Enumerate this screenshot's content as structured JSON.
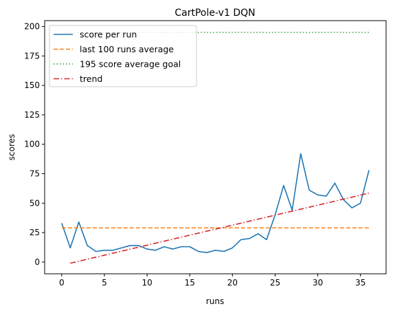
{
  "chart_data": {
    "type": "line",
    "title": "CartPole-v1 DQN",
    "xlabel": "runs",
    "ylabel": "scores",
    "xlim": [
      -2,
      38
    ],
    "ylim": [
      -10,
      205
    ],
    "xticks": [
      0,
      5,
      10,
      15,
      20,
      25,
      30,
      35
    ],
    "yticks": [
      0,
      25,
      50,
      75,
      100,
      125,
      150,
      175,
      200
    ],
    "grid": false,
    "legend_position": "upper-left",
    "series": [
      {
        "name": "score per run",
        "style": "solid",
        "color": "#1f77b4",
        "x": [
          0,
          1,
          2,
          3,
          4,
          5,
          6,
          7,
          8,
          9,
          10,
          11,
          12,
          13,
          14,
          15,
          16,
          17,
          18,
          19,
          20,
          21,
          22,
          23,
          24,
          25,
          26,
          27,
          28,
          29,
          30,
          31,
          32,
          33,
          34,
          35,
          36
        ],
        "y": [
          33,
          12,
          34,
          14,
          9,
          10,
          10,
          12,
          14,
          14,
          11,
          10,
          13,
          11,
          13,
          13,
          9,
          8,
          10,
          9,
          12,
          19,
          20,
          24,
          19,
          40,
          65,
          44,
          92,
          61,
          57,
          56,
          67,
          53,
          46,
          50,
          78
        ]
      },
      {
        "name": "last 100 runs average",
        "style": "dashed",
        "color": "#ff7f0e",
        "x": [
          0,
          36
        ],
        "y": [
          29,
          29
        ]
      },
      {
        "name": "195 score average goal",
        "style": "dotted",
        "color": "#2ca02c",
        "x": [
          0,
          36
        ],
        "y": [
          195,
          195
        ]
      },
      {
        "name": "trend",
        "style": "dashdot",
        "color": "#d62728",
        "x": [
          1,
          36
        ],
        "y": [
          -1,
          58.5
        ]
      }
    ]
  }
}
